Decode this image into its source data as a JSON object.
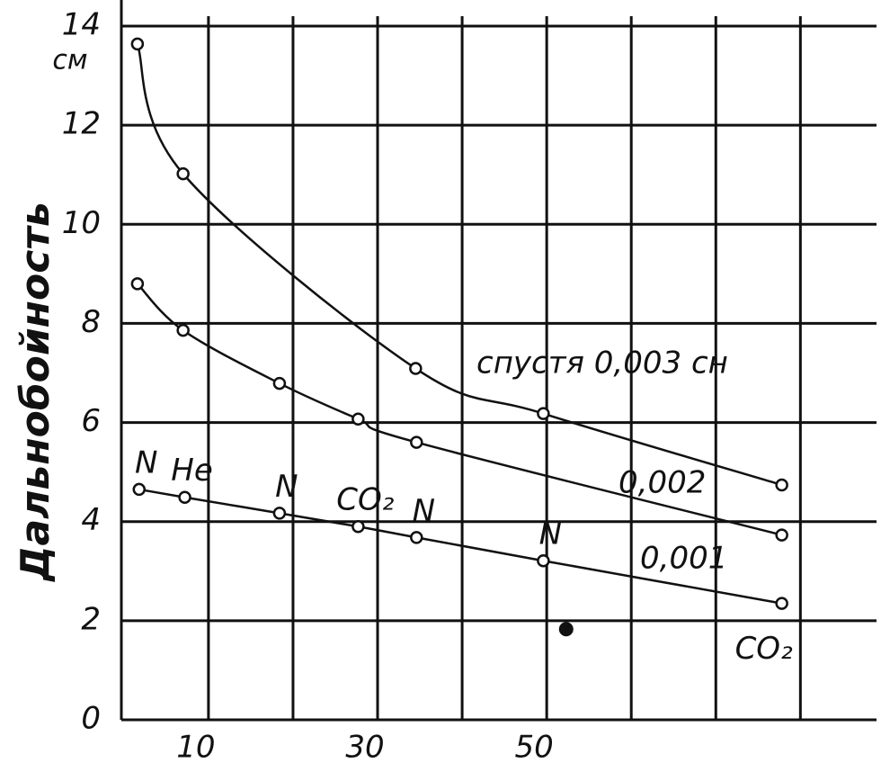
{
  "chart_data": {
    "type": "line",
    "y_label": "Дальнобойность",
    "y_unit": "см",
    "xlim": [
      -0.3,
      89
    ],
    "ylim": [
      0,
      14.2
    ],
    "xticks": [
      10,
      30,
      50
    ],
    "x_unlabeled_gridlines": [
      20,
      40,
      60,
      70,
      80
    ],
    "yticks": [
      0,
      2,
      4,
      6,
      8,
      10,
      12,
      14
    ],
    "grid": true,
    "series": [
      {
        "name": "спустя 0,003 сн",
        "color": "#111111",
        "x": [
          1.6,
          7.0,
          34.5,
          49.6,
          77.8
        ],
        "values": [
          13.64,
          11.02,
          7.09,
          6.18,
          4.74
        ]
      },
      {
        "name": "0,002",
        "color": "#111111",
        "x": [
          1.6,
          7.0,
          18.4,
          27.7,
          34.6,
          77.8
        ],
        "values": [
          8.8,
          7.86,
          6.79,
          6.07,
          5.6,
          3.73
        ]
      },
      {
        "name": "0,001",
        "color": "#111111",
        "x": [
          1.8,
          7.2,
          18.4,
          27.7,
          34.6,
          49.6,
          77.8
        ],
        "values": [
          4.65,
          4.49,
          4.17,
          3.9,
          3.68,
          3.21,
          2.35
        ],
        "point_labels": [
          "N",
          "He",
          "N",
          "CO₂",
          "N",
          "N",
          "CO₂"
        ]
      }
    ],
    "extra_points": {
      "x": [
        52.3
      ],
      "values": [
        1.83
      ]
    }
  }
}
